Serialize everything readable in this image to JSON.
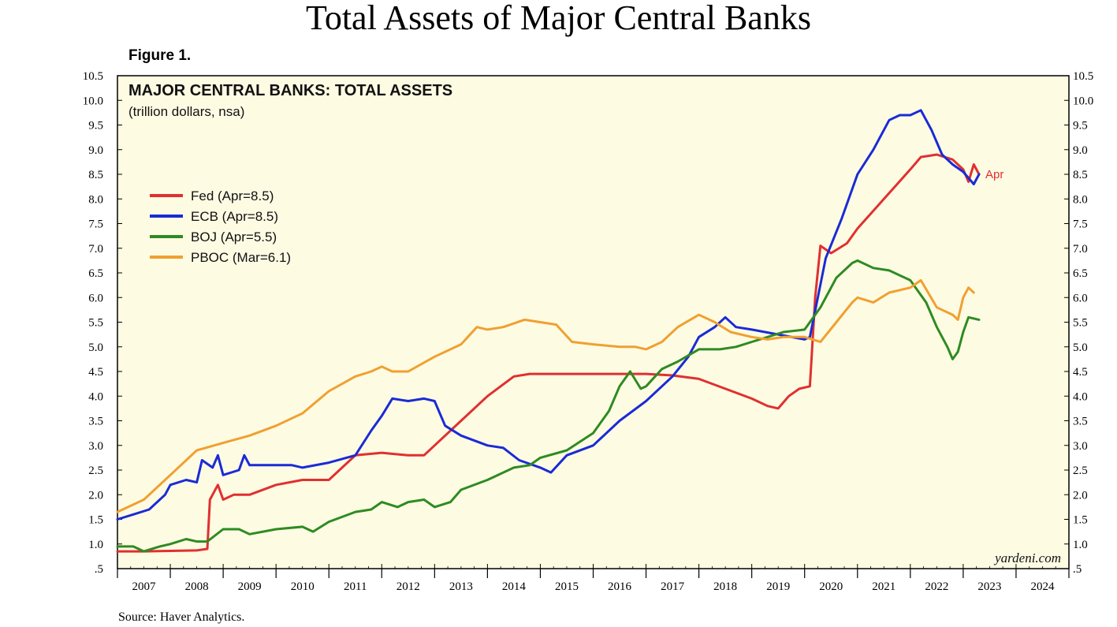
{
  "page": {
    "title": "Total Assets of Major Central Banks",
    "figure_label": "Figure 1.",
    "source": "Source: Haver Analytics."
  },
  "chart_data": {
    "type": "line",
    "title": "MAJOR CENTRAL BANKS: TOTAL ASSETS",
    "subtitle": "(trillion dollars, nsa)",
    "watermark": "yardeni.com",
    "end_annotation": "Apr",
    "ylim": [
      0.5,
      10.5
    ],
    "xlim": [
      2007.0,
      2025.0
    ],
    "y_ticks": [
      ".5",
      "1.0",
      "1.5",
      "2.0",
      "2.5",
      "3.0",
      "3.5",
      "4.0",
      "4.5",
      "5.0",
      "5.5",
      "6.0",
      "6.5",
      "7.0",
      "7.5",
      "8.0",
      "8.5",
      "9.0",
      "9.5",
      "10.0",
      "10.5"
    ],
    "x_ticks": [
      "2007",
      "2008",
      "2009",
      "2010",
      "2011",
      "2012",
      "2013",
      "2014",
      "2015",
      "2016",
      "2017",
      "2018",
      "2019",
      "2020",
      "2021",
      "2022",
      "2023",
      "2024"
    ],
    "grid": false,
    "legend_position": "upper-left",
    "series": [
      {
        "name": "Fed (Apr=8.5)",
        "color": "#e03030",
        "points": [
          [
            2007.0,
            0.85
          ],
          [
            2007.5,
            0.85
          ],
          [
            2008.0,
            0.86
          ],
          [
            2008.5,
            0.87
          ],
          [
            2008.7,
            0.9
          ],
          [
            2008.75,
            1.9
          ],
          [
            2008.9,
            2.2
          ],
          [
            2009.0,
            1.9
          ],
          [
            2009.2,
            2.0
          ],
          [
            2009.5,
            2.0
          ],
          [
            2010.0,
            2.2
          ],
          [
            2010.5,
            2.3
          ],
          [
            2011.0,
            2.3
          ],
          [
            2011.25,
            2.55
          ],
          [
            2011.5,
            2.8
          ],
          [
            2012.0,
            2.85
          ],
          [
            2012.5,
            2.8
          ],
          [
            2012.8,
            2.8
          ],
          [
            2013.0,
            3.0
          ],
          [
            2013.5,
            3.5
          ],
          [
            2014.0,
            4.0
          ],
          [
            2014.5,
            4.4
          ],
          [
            2014.8,
            4.45
          ],
          [
            2015.5,
            4.45
          ],
          [
            2016.5,
            4.45
          ],
          [
            2017.0,
            4.45
          ],
          [
            2017.5,
            4.42
          ],
          [
            2018.0,
            4.35
          ],
          [
            2018.5,
            4.15
          ],
          [
            2019.0,
            3.95
          ],
          [
            2019.3,
            3.8
          ],
          [
            2019.5,
            3.75
          ],
          [
            2019.7,
            4.0
          ],
          [
            2019.9,
            4.15
          ],
          [
            2020.1,
            4.2
          ],
          [
            2020.2,
            6.0
          ],
          [
            2020.3,
            7.05
          ],
          [
            2020.5,
            6.9
          ],
          [
            2020.8,
            7.1
          ],
          [
            2021.0,
            7.4
          ],
          [
            2021.5,
            8.0
          ],
          [
            2022.0,
            8.6
          ],
          [
            2022.2,
            8.85
          ],
          [
            2022.5,
            8.9
          ],
          [
            2022.8,
            8.8
          ],
          [
            2023.0,
            8.6
          ],
          [
            2023.1,
            8.35
          ],
          [
            2023.2,
            8.7
          ],
          [
            2023.3,
            8.5
          ]
        ]
      },
      {
        "name": "ECB (Apr=8.5)",
        "color": "#1a2bd6",
        "points": [
          [
            2007.0,
            1.5
          ],
          [
            2007.3,
            1.6
          ],
          [
            2007.6,
            1.7
          ],
          [
            2007.9,
            2.0
          ],
          [
            2008.0,
            2.2
          ],
          [
            2008.3,
            2.3
          ],
          [
            2008.5,
            2.25
          ],
          [
            2008.6,
            2.7
          ],
          [
            2008.8,
            2.55
          ],
          [
            2008.9,
            2.8
          ],
          [
            2009.0,
            2.4
          ],
          [
            2009.3,
            2.5
          ],
          [
            2009.4,
            2.8
          ],
          [
            2009.5,
            2.6
          ],
          [
            2010.0,
            2.6
          ],
          [
            2010.3,
            2.6
          ],
          [
            2010.5,
            2.55
          ],
          [
            2011.0,
            2.65
          ],
          [
            2011.5,
            2.8
          ],
          [
            2011.8,
            3.3
          ],
          [
            2012.0,
            3.6
          ],
          [
            2012.2,
            3.95
          ],
          [
            2012.5,
            3.9
          ],
          [
            2012.8,
            3.95
          ],
          [
            2013.0,
            3.9
          ],
          [
            2013.2,
            3.4
          ],
          [
            2013.5,
            3.2
          ],
          [
            2014.0,
            3.0
          ],
          [
            2014.3,
            2.95
          ],
          [
            2014.6,
            2.7
          ],
          [
            2015.0,
            2.55
          ],
          [
            2015.2,
            2.45
          ],
          [
            2015.5,
            2.8
          ],
          [
            2016.0,
            3.0
          ],
          [
            2016.5,
            3.5
          ],
          [
            2017.0,
            3.9
          ],
          [
            2017.5,
            4.4
          ],
          [
            2017.8,
            4.8
          ],
          [
            2018.0,
            5.2
          ],
          [
            2018.3,
            5.4
          ],
          [
            2018.5,
            5.6
          ],
          [
            2018.7,
            5.4
          ],
          [
            2019.0,
            5.35
          ],
          [
            2019.5,
            5.25
          ],
          [
            2020.0,
            5.15
          ],
          [
            2020.1,
            5.2
          ],
          [
            2020.4,
            6.8
          ],
          [
            2020.7,
            7.6
          ],
          [
            2021.0,
            8.5
          ],
          [
            2021.3,
            9.0
          ],
          [
            2021.6,
            9.6
          ],
          [
            2021.8,
            9.7
          ],
          [
            2022.0,
            9.7
          ],
          [
            2022.2,
            9.8
          ],
          [
            2022.4,
            9.4
          ],
          [
            2022.6,
            8.9
          ],
          [
            2022.8,
            8.7
          ],
          [
            2023.0,
            8.55
          ],
          [
            2023.2,
            8.3
          ],
          [
            2023.3,
            8.5
          ]
        ]
      },
      {
        "name": "BOJ (Apr=5.5)",
        "color": "#2e8b22",
        "points": [
          [
            2007.0,
            0.95
          ],
          [
            2007.3,
            0.95
          ],
          [
            2007.5,
            0.85
          ],
          [
            2007.8,
            0.95
          ],
          [
            2008.0,
            1.0
          ],
          [
            2008.3,
            1.1
          ],
          [
            2008.5,
            1.05
          ],
          [
            2008.7,
            1.05
          ],
          [
            2009.0,
            1.3
          ],
          [
            2009.3,
            1.3
          ],
          [
            2009.5,
            1.2
          ],
          [
            2010.0,
            1.3
          ],
          [
            2010.5,
            1.35
          ],
          [
            2010.7,
            1.25
          ],
          [
            2011.0,
            1.45
          ],
          [
            2011.5,
            1.65
          ],
          [
            2011.8,
            1.7
          ],
          [
            2012.0,
            1.85
          ],
          [
            2012.3,
            1.75
          ],
          [
            2012.5,
            1.85
          ],
          [
            2012.8,
            1.9
          ],
          [
            2013.0,
            1.75
          ],
          [
            2013.3,
            1.85
          ],
          [
            2013.5,
            2.1
          ],
          [
            2014.0,
            2.3
          ],
          [
            2014.5,
            2.55
          ],
          [
            2014.8,
            2.6
          ],
          [
            2015.0,
            2.75
          ],
          [
            2015.5,
            2.9
          ],
          [
            2016.0,
            3.25
          ],
          [
            2016.3,
            3.7
          ],
          [
            2016.5,
            4.2
          ],
          [
            2016.7,
            4.5
          ],
          [
            2016.9,
            4.15
          ],
          [
            2017.0,
            4.2
          ],
          [
            2017.3,
            4.55
          ],
          [
            2017.6,
            4.7
          ],
          [
            2018.0,
            4.95
          ],
          [
            2018.4,
            4.95
          ],
          [
            2018.7,
            5.0
          ],
          [
            2019.0,
            5.1
          ],
          [
            2019.3,
            5.2
          ],
          [
            2019.6,
            5.3
          ],
          [
            2020.0,
            5.35
          ],
          [
            2020.3,
            5.8
          ],
          [
            2020.6,
            6.4
          ],
          [
            2020.9,
            6.7
          ],
          [
            2021.0,
            6.75
          ],
          [
            2021.3,
            6.6
          ],
          [
            2021.6,
            6.55
          ],
          [
            2022.0,
            6.35
          ],
          [
            2022.3,
            5.9
          ],
          [
            2022.5,
            5.4
          ],
          [
            2022.7,
            5.0
          ],
          [
            2022.8,
            4.75
          ],
          [
            2022.9,
            4.9
          ],
          [
            2023.0,
            5.3
          ],
          [
            2023.1,
            5.6
          ],
          [
            2023.3,
            5.55
          ]
        ]
      },
      {
        "name": "PBOC (Mar=6.1)",
        "color": "#f0a030",
        "points": [
          [
            2007.0,
            1.65
          ],
          [
            2007.5,
            1.9
          ],
          [
            2008.0,
            2.4
          ],
          [
            2008.5,
            2.9
          ],
          [
            2009.0,
            3.05
          ],
          [
            2009.5,
            3.2
          ],
          [
            2010.0,
            3.4
          ],
          [
            2010.5,
            3.65
          ],
          [
            2011.0,
            4.1
          ],
          [
            2011.5,
            4.4
          ],
          [
            2011.8,
            4.5
          ],
          [
            2012.0,
            4.6
          ],
          [
            2012.2,
            4.5
          ],
          [
            2012.5,
            4.5
          ],
          [
            2013.0,
            4.8
          ],
          [
            2013.5,
            5.05
          ],
          [
            2013.8,
            5.4
          ],
          [
            2014.0,
            5.35
          ],
          [
            2014.3,
            5.4
          ],
          [
            2014.7,
            5.55
          ],
          [
            2015.0,
            5.5
          ],
          [
            2015.3,
            5.45
          ],
          [
            2015.6,
            5.1
          ],
          [
            2016.0,
            5.05
          ],
          [
            2016.5,
            5.0
          ],
          [
            2016.8,
            5.0
          ],
          [
            2017.0,
            4.95
          ],
          [
            2017.3,
            5.1
          ],
          [
            2017.6,
            5.4
          ],
          [
            2018.0,
            5.65
          ],
          [
            2018.3,
            5.5
          ],
          [
            2018.6,
            5.3
          ],
          [
            2019.0,
            5.2
          ],
          [
            2019.3,
            5.15
          ],
          [
            2019.6,
            5.2
          ],
          [
            2020.0,
            5.2
          ],
          [
            2020.3,
            5.1
          ],
          [
            2020.6,
            5.5
          ],
          [
            2020.9,
            5.9
          ],
          [
            2021.0,
            6.0
          ],
          [
            2021.3,
            5.9
          ],
          [
            2021.6,
            6.1
          ],
          [
            2022.0,
            6.2
          ],
          [
            2022.2,
            6.35
          ],
          [
            2022.5,
            5.8
          ],
          [
            2022.8,
            5.65
          ],
          [
            2022.9,
            5.55
          ],
          [
            2023.0,
            6.0
          ],
          [
            2023.1,
            6.2
          ],
          [
            2023.2,
            6.1
          ]
        ]
      }
    ]
  }
}
